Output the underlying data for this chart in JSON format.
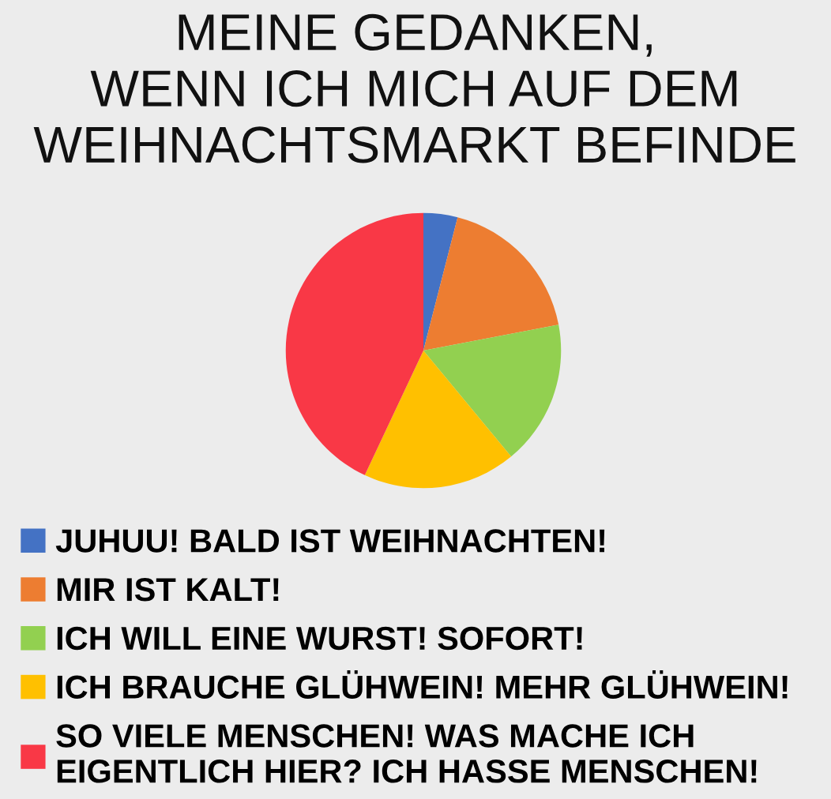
{
  "chart_data": {
    "type": "pie",
    "title": "MEINE GEDANKEN,\nWENN ICH MICH AUF DEM\nWEIHNACHTSMARKT BEFINDE",
    "categories": [
      "JUHUU! BALD IST WEIHNACHTEN!",
      "MIR IST KALT!",
      "ICH WILL EINE WURST! SOFORT!",
      "ICH BRAUCHE GLÜHWEIN! MEHR GLÜHWEIN!",
      "SO VIELE MENSCHEN! WAS MACHE ICH\nEIGENTLICH HIER? ICH HASSE MENSCHEN!"
    ],
    "values": [
      4,
      18,
      17,
      18,
      43
    ],
    "colors": [
      "#4472c4",
      "#ed7d31",
      "#92d050",
      "#ffc000",
      "#f93846"
    ],
    "legend": "bottom"
  }
}
